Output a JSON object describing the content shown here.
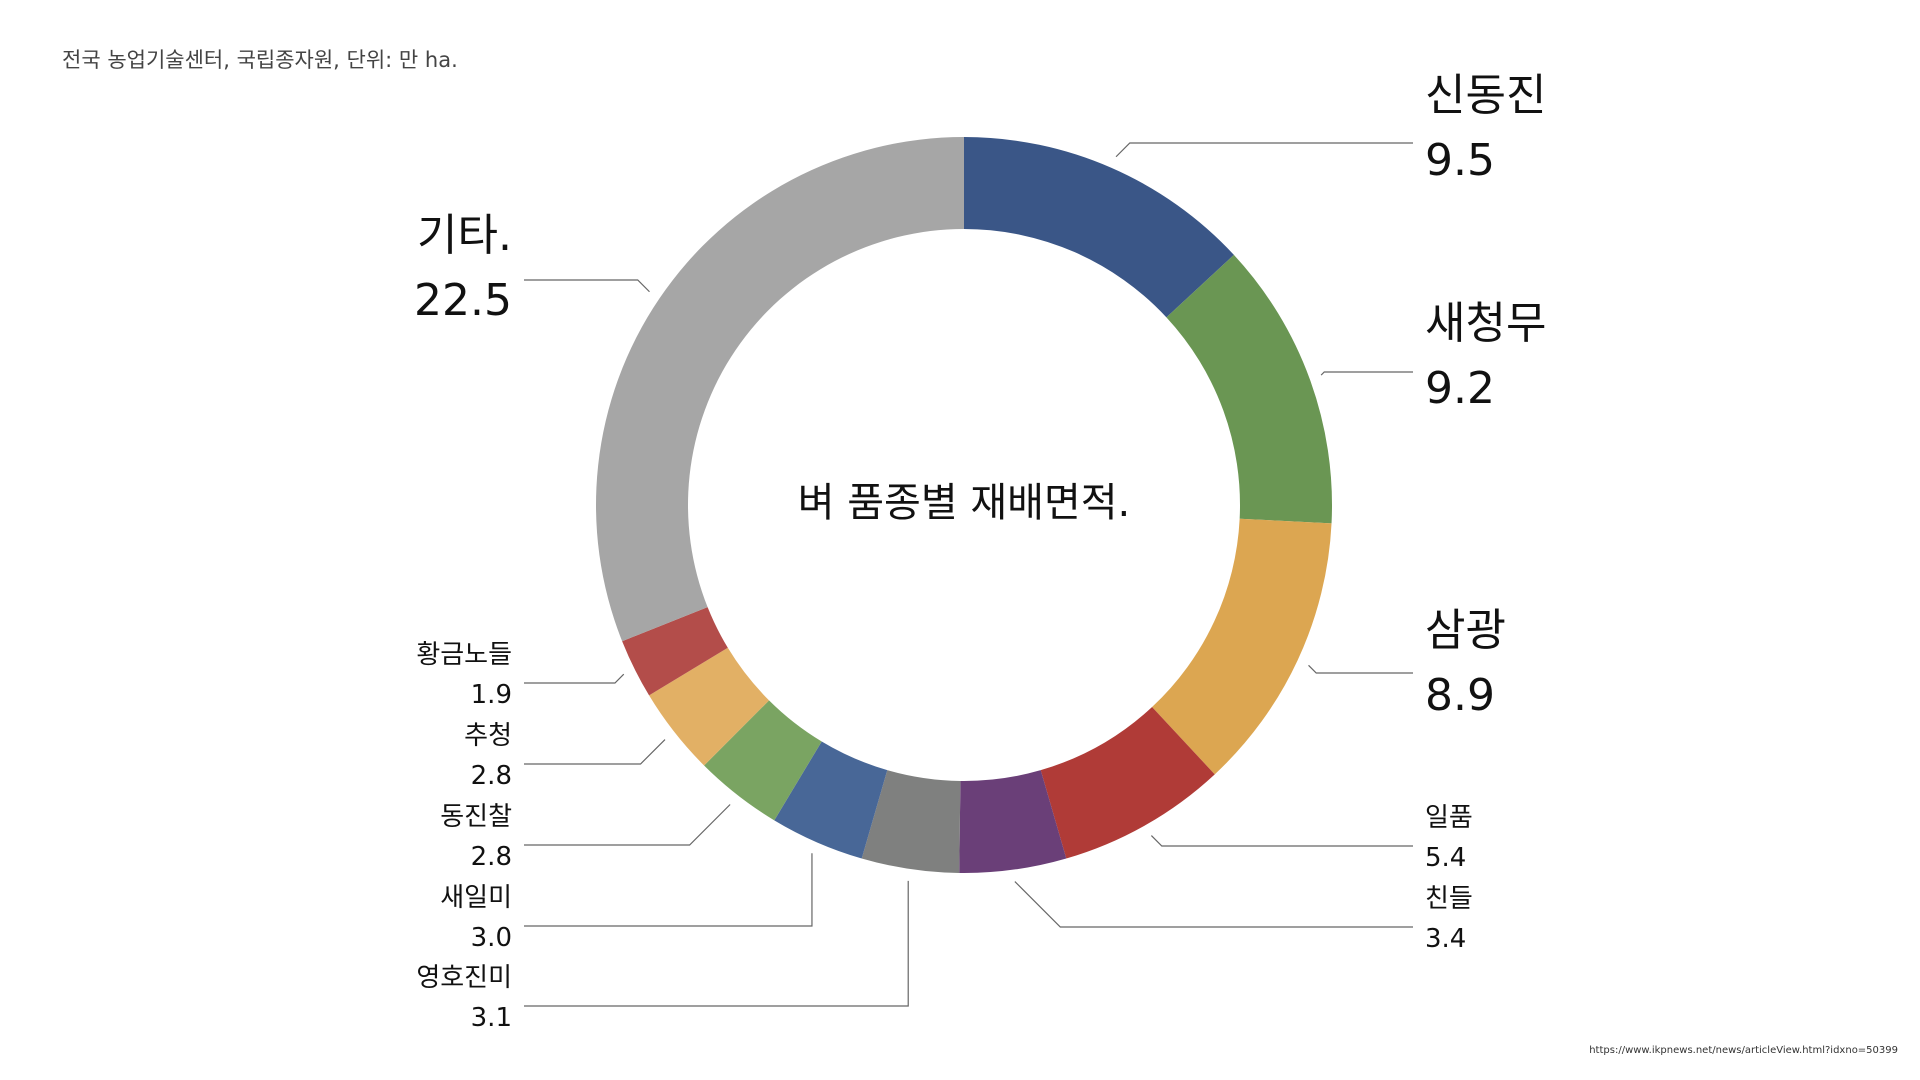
{
  "source_note": "전국 농업기술센터, 국립종자원, 단위: 만 ha.",
  "source_url": "https://www.ikpnews.net/news/articleView.html?idxno=50399",
  "chart_data": {
    "type": "pie",
    "variant": "donut",
    "title": "벼 품종별 재배면적.",
    "unit": "만 ha",
    "slices": [
      {
        "name": "신동진",
        "value": 9.5,
        "value_label": "9.5",
        "color": "#3a5687"
      },
      {
        "name": "새청무",
        "value": 9.2,
        "value_label": "9.2",
        "color": "#6a9653"
      },
      {
        "name": "삼광",
        "value": 8.9,
        "value_label": "8.9",
        "color": "#dca651"
      },
      {
        "name": "일품",
        "value": 5.4,
        "value_label": "5.4",
        "color": "#b03b37"
      },
      {
        "name": "친들",
        "value": 3.4,
        "value_label": "3.4",
        "color": "#6a3f78"
      },
      {
        "name": "영호진미",
        "value": 3.1,
        "value_label": "3.1",
        "color": "#7f807f"
      },
      {
        "name": "새일미",
        "value": 3.0,
        "value_label": "3.0",
        "color": "#486797"
      },
      {
        "name": "동진찰",
        "value": 2.8,
        "value_label": "2.8",
        "color": "#7aa462"
      },
      {
        "name": "추청",
        "value": 2.8,
        "value_label": "2.8",
        "color": "#e2b065"
      },
      {
        "name": "황금노들",
        "value": 1.9,
        "value_label": "1.9",
        "color": "#b34d4a"
      },
      {
        "name": "기타.",
        "value": 22.5,
        "value_label": "22.5",
        "color": "#a6a6a6"
      }
    ]
  }
}
